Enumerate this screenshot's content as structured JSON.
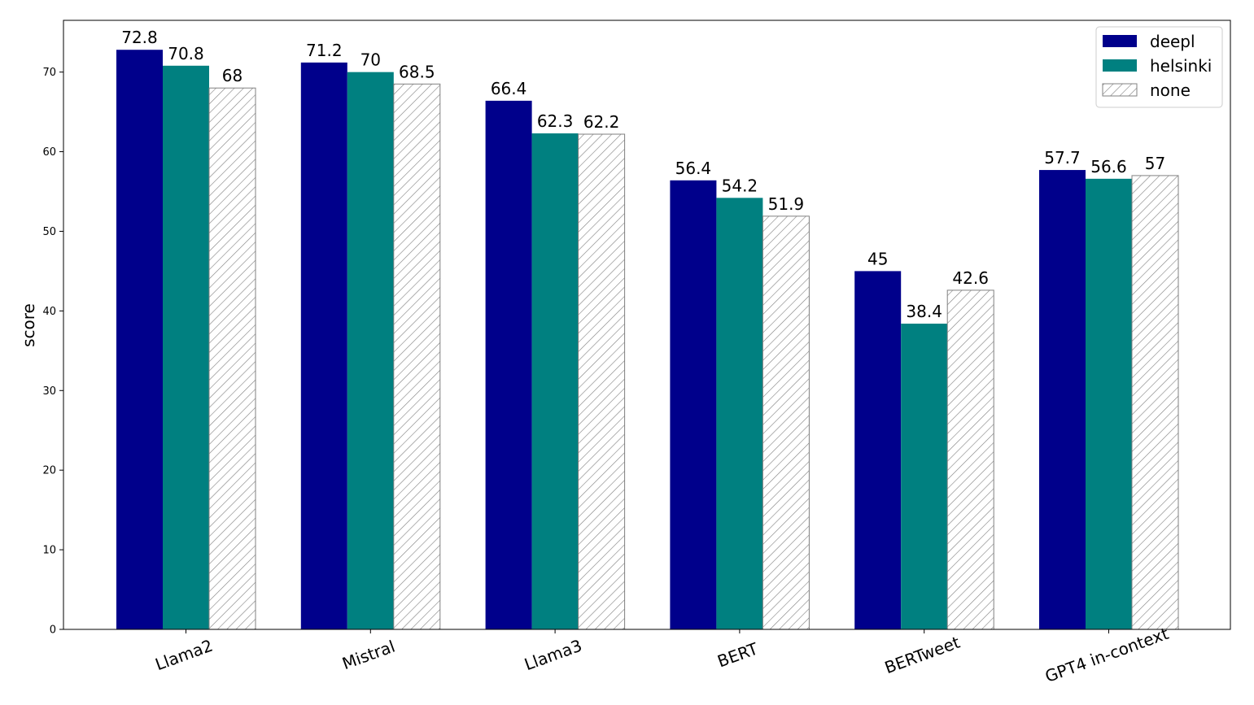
{
  "chart_data": {
    "type": "bar",
    "title": "",
    "xlabel": "",
    "ylabel": "score",
    "ylim": [
      0,
      76.5
    ],
    "yticks": [
      0,
      10,
      20,
      30,
      40,
      50,
      60,
      70
    ],
    "categories": [
      "Llama2",
      "Mistral",
      "Llama3",
      "BERT",
      "BERTweet",
      "GPT4 in-context"
    ],
    "series": [
      {
        "name": "deepl",
        "values": [
          72.8,
          71.2,
          66.4,
          56.4,
          45,
          57.7
        ],
        "color": "#00008b",
        "hatch": false
      },
      {
        "name": "helsinki",
        "values": [
          70.8,
          70,
          62.3,
          54.2,
          38.4,
          56.6
        ],
        "color": "#008080",
        "hatch": false
      },
      {
        "name": "none",
        "values": [
          68,
          68.5,
          62.2,
          51.9,
          42.6,
          57
        ],
        "color": "#ffffff",
        "hatch": true,
        "edge_color": "#808080"
      }
    ],
    "value_labels": [
      [
        "72.8",
        "71.2",
        "66.4",
        "56.4",
        "45",
        "57.7"
      ],
      [
        "70.8",
        "70",
        "62.3",
        "54.2",
        "38.4",
        "56.6"
      ],
      [
        "68",
        "68.5",
        "62.2",
        "51.9",
        "42.6",
        "57"
      ]
    ],
    "legend_position": "top-right",
    "grid": false,
    "xtick_rotation": -20
  }
}
